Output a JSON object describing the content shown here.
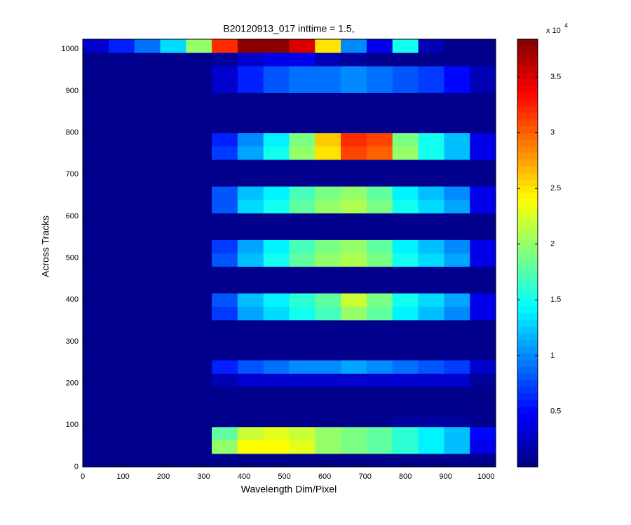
{
  "chart_data": {
    "type": "heatmap",
    "title": "B20120913_017 inttime = 1.5,",
    "x_label": "Wavelength Dim/Pixel",
    "y_label": "Across Tracks",
    "colorbar_multiplier": "x 10",
    "colorbar_exponent": "4",
    "xlim": [
      0,
      1024
    ],
    "ylim": [
      0,
      1024
    ],
    "xticks": [
      0,
      100,
      200,
      300,
      400,
      500,
      600,
      700,
      800,
      900,
      1000
    ],
    "yticks": [
      0,
      100,
      200,
      300,
      400,
      500,
      600,
      700,
      800,
      900,
      1000
    ],
    "clim": [
      0,
      3.84
    ],
    "cticks": [
      0.5,
      1,
      1.5,
      2,
      2.5,
      3,
      3.5
    ],
    "colormap": "jet",
    "x": [
      32,
      96,
      160,
      224,
      288,
      352,
      416,
      480,
      544,
      608,
      672,
      736,
      800,
      864,
      928,
      992
    ],
    "y": [
      16,
      48,
      80,
      112,
      144,
      176,
      208,
      240,
      272,
      304,
      336,
      368,
      400,
      432,
      464,
      496,
      528,
      560,
      592,
      624,
      656,
      688,
      720,
      752,
      784,
      816,
      848,
      880,
      912,
      944,
      976,
      1008
    ],
    "z": [
      [
        0.05,
        0.05,
        0.05,
        0.05,
        0.05,
        0.05,
        0.05,
        0.05,
        0.05,
        0.05,
        0.05,
        0.05,
        0.05,
        0.05,
        0.05,
        0.05
      ],
      [
        0.05,
        0.05,
        0.05,
        0.05,
        0.05,
        2.0,
        2.4,
        2.4,
        2.3,
        2.0,
        1.9,
        1.8,
        1.6,
        1.4,
        1.2,
        0.4
      ],
      [
        0.05,
        0.05,
        0.05,
        0.05,
        0.05,
        1.8,
        2.2,
        2.3,
        2.2,
        2.0,
        1.9,
        1.8,
        1.6,
        1.4,
        1.2,
        0.5
      ],
      [
        0.05,
        0.05,
        0.05,
        0.05,
        0.05,
        0.05,
        0.05,
        0.05,
        0.05,
        0.05,
        0.05,
        0.05,
        0.1,
        0.1,
        0.1,
        0.05
      ],
      [
        0.05,
        0.05,
        0.05,
        0.05,
        0.05,
        0.05,
        0.05,
        0.05,
        0.05,
        0.05,
        0.05,
        0.05,
        0.05,
        0.05,
        0.05,
        0.05
      ],
      [
        0.05,
        0.05,
        0.05,
        0.05,
        0.05,
        0.05,
        0.05,
        0.05,
        0.05,
        0.05,
        0.05,
        0.05,
        0.05,
        0.05,
        0.05,
        0.05
      ],
      [
        0.05,
        0.05,
        0.05,
        0.05,
        0.05,
        0.2,
        0.3,
        0.3,
        0.3,
        0.3,
        0.3,
        0.3,
        0.3,
        0.3,
        0.3,
        0.1
      ],
      [
        0.05,
        0.05,
        0.05,
        0.05,
        0.05,
        0.6,
        0.8,
        0.9,
        1.0,
        1.0,
        1.1,
        1.0,
        0.9,
        0.8,
        0.7,
        0.3
      ],
      [
        0.05,
        0.05,
        0.05,
        0.05,
        0.05,
        0.05,
        0.05,
        0.05,
        0.05,
        0.05,
        0.05,
        0.05,
        0.05,
        0.05,
        0.05,
        0.05
      ],
      [
        0.05,
        0.05,
        0.05,
        0.05,
        0.05,
        0.05,
        0.05,
        0.05,
        0.05,
        0.05,
        0.05,
        0.05,
        0.05,
        0.05,
        0.05,
        0.05
      ],
      [
        0.05,
        0.05,
        0.05,
        0.05,
        0.05,
        0.05,
        0.05,
        0.05,
        0.05,
        0.05,
        0.05,
        0.05,
        0.05,
        0.05,
        0.05,
        0.05
      ],
      [
        0.05,
        0.05,
        0.05,
        0.05,
        0.05,
        0.7,
        1.1,
        1.3,
        1.5,
        1.7,
        2.0,
        1.8,
        1.4,
        1.2,
        1.0,
        0.4
      ],
      [
        0.05,
        0.05,
        0.05,
        0.05,
        0.05,
        0.8,
        1.2,
        1.4,
        1.6,
        1.8,
        2.2,
        1.9,
        1.5,
        1.3,
        1.1,
        0.4
      ],
      [
        0.05,
        0.05,
        0.05,
        0.05,
        0.05,
        0.05,
        0.05,
        0.05,
        0.05,
        0.05,
        0.05,
        0.05,
        0.05,
        0.05,
        0.05,
        0.05
      ],
      [
        0.05,
        0.05,
        0.05,
        0.05,
        0.05,
        0.05,
        0.05,
        0.05,
        0.05,
        0.05,
        0.05,
        0.05,
        0.05,
        0.05,
        0.05,
        0.05
      ],
      [
        0.05,
        0.05,
        0.05,
        0.05,
        0.05,
        0.8,
        1.2,
        1.5,
        1.8,
        2.0,
        2.1,
        1.9,
        1.5,
        1.3,
        1.1,
        0.4
      ],
      [
        0.05,
        0.05,
        0.05,
        0.05,
        0.05,
        0.7,
        1.1,
        1.4,
        1.7,
        1.9,
        2.0,
        1.8,
        1.4,
        1.2,
        1.0,
        0.4
      ],
      [
        0.05,
        0.05,
        0.05,
        0.05,
        0.05,
        0.05,
        0.05,
        0.05,
        0.05,
        0.05,
        0.05,
        0.05,
        0.05,
        0.05,
        0.05,
        0.05
      ],
      [
        0.05,
        0.05,
        0.05,
        0.05,
        0.05,
        0.05,
        0.05,
        0.05,
        0.05,
        0.05,
        0.05,
        0.05,
        0.05,
        0.05,
        0.05,
        0.05
      ],
      [
        0.05,
        0.05,
        0.05,
        0.05,
        0.05,
        0.8,
        1.3,
        1.5,
        1.8,
        2.0,
        2.1,
        1.9,
        1.5,
        1.3,
        1.1,
        0.4
      ],
      [
        0.05,
        0.05,
        0.05,
        0.05,
        0.05,
        0.8,
        1.2,
        1.4,
        1.7,
        1.9,
        2.0,
        1.8,
        1.4,
        1.2,
        1.0,
        0.4
      ],
      [
        0.05,
        0.05,
        0.05,
        0.05,
        0.05,
        0.05,
        0.05,
        0.05,
        0.05,
        0.05,
        0.05,
        0.05,
        0.05,
        0.05,
        0.05,
        0.05
      ],
      [
        0.05,
        0.05,
        0.05,
        0.05,
        0.05,
        0.05,
        0.05,
        0.05,
        0.05,
        0.05,
        0.05,
        0.05,
        0.05,
        0.05,
        0.05,
        0.05
      ],
      [
        0.05,
        0.05,
        0.05,
        0.05,
        0.05,
        0.7,
        1.1,
        1.5,
        2.0,
        2.5,
        3.1,
        3.0,
        2.0,
        1.5,
        1.2,
        0.4
      ],
      [
        0.05,
        0.05,
        0.05,
        0.05,
        0.05,
        0.6,
        1.0,
        1.4,
        1.9,
        2.6,
        3.2,
        3.1,
        1.9,
        1.5,
        1.2,
        0.4
      ],
      [
        0.05,
        0.05,
        0.05,
        0.05,
        0.05,
        0.05,
        0.05,
        0.05,
        0.05,
        0.05,
        0.05,
        0.05,
        0.05,
        0.05,
        0.05,
        0.05
      ],
      [
        0.05,
        0.05,
        0.05,
        0.05,
        0.05,
        0.05,
        0.05,
        0.05,
        0.05,
        0.05,
        0.05,
        0.05,
        0.05,
        0.05,
        0.05,
        0.05
      ],
      [
        0.05,
        0.05,
        0.05,
        0.05,
        0.05,
        0.05,
        0.05,
        0.05,
        0.05,
        0.05,
        0.05,
        0.05,
        0.05,
        0.05,
        0.05,
        0.05
      ],
      [
        0.05,
        0.05,
        0.05,
        0.05,
        0.05,
        0.3,
        0.6,
        0.8,
        0.9,
        0.9,
        1.0,
        0.9,
        0.8,
        0.7,
        0.5,
        0.2
      ],
      [
        0.05,
        0.05,
        0.05,
        0.05,
        0.05,
        0.3,
        0.6,
        0.8,
        0.9,
        0.9,
        1.0,
        0.9,
        0.8,
        0.7,
        0.5,
        0.2
      ],
      [
        0.05,
        0.05,
        0.05,
        0.05,
        0.05,
        0.1,
        0.3,
        0.4,
        0.4,
        0.2,
        0.1,
        0.05,
        0.05,
        0.05,
        0.05,
        0.05
      ],
      [
        0.3,
        0.6,
        0.9,
        1.3,
        2.0,
        3.2,
        3.8,
        3.8,
        3.5,
        2.5,
        1.0,
        0.4,
        1.5,
        0.2,
        0.05,
        0.05
      ]
    ]
  }
}
